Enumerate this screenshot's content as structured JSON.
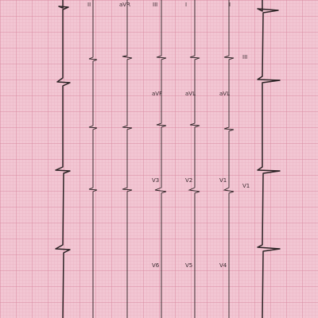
{
  "ecg": {
    "colors": {
      "paper": "#f2c6d3",
      "grid_minor": "#e5a9bb",
      "grid_major": "#d98aa2",
      "trace": "#2b2224",
      "label": "#3a2a30"
    },
    "lead_labels": {
      "row1": [
        "II",
        "aVR",
        "III",
        "I",
        "I"
      ],
      "row2": [
        "aVF",
        "aVL",
        "aVL"
      ],
      "row3": [
        "V3",
        "V2",
        "V1"
      ],
      "row4": [
        "V6",
        "V5",
        "V4"
      ],
      "side_upper": "III",
      "side_lower": "V1"
    }
  }
}
